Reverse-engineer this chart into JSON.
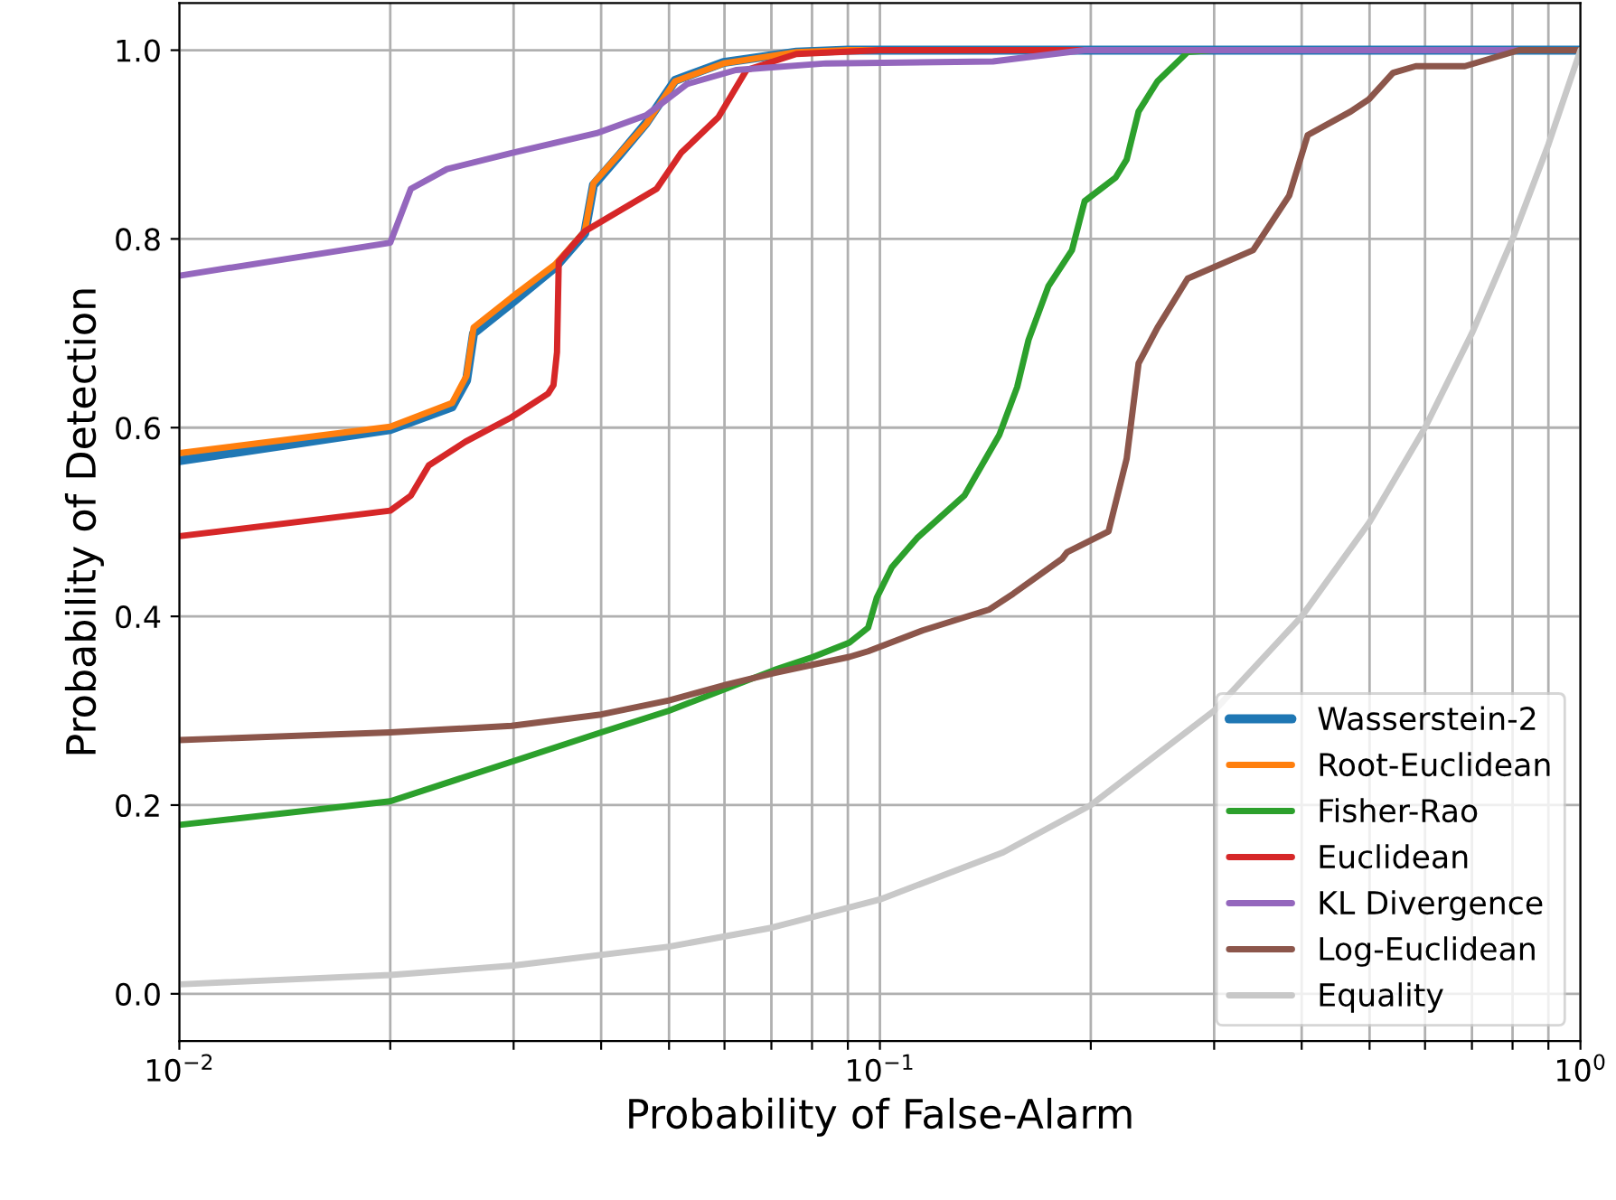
{
  "chart_data": {
    "type": "line",
    "xlabel": "Probability of False-Alarm",
    "ylabel": "Probability of Detection",
    "log": "x",
    "xlim": [
      0.01,
      1
    ],
    "ylim": [
      -0.05,
      1.05
    ],
    "xticks": [
      {
        "value": 0.01,
        "label": "10$^{−2}$"
      },
      {
        "value": 0.02,
        "label": null
      },
      {
        "value": 0.03,
        "label": null
      },
      {
        "value": 0.04,
        "label": null
      },
      {
        "value": 0.05,
        "label": null
      },
      {
        "value": 0.06,
        "label": null
      },
      {
        "value": 0.07,
        "label": null
      },
      {
        "value": 0.08,
        "label": null
      },
      {
        "value": 0.09,
        "label": null
      },
      {
        "value": 0.1,
        "label": "10$^{−1}$"
      },
      {
        "value": 0.2,
        "label": null
      },
      {
        "value": 0.3,
        "label": null
      },
      {
        "value": 0.4,
        "label": null
      },
      {
        "value": 0.5,
        "label": null
      },
      {
        "value": 0.6,
        "label": null
      },
      {
        "value": 0.7,
        "label": null
      },
      {
        "value": 0.8,
        "label": null
      },
      {
        "value": 0.9,
        "label": null
      },
      {
        "value": 1,
        "label": "10$^{0}$"
      }
    ],
    "yticks": [
      {
        "value": 0,
        "label": "0.0"
      },
      {
        "value": 0.2,
        "label": "0.2"
      },
      {
        "value": 0.4,
        "label": "0.4"
      },
      {
        "value": 0.6,
        "label": "0.6"
      },
      {
        "value": 0.8,
        "label": "0.8"
      },
      {
        "value": 1,
        "label": "1.0"
      }
    ],
    "grid": true,
    "legend": "bottom right",
    "marker": "none",
    "line_style": "solid",
    "series": [
      {
        "name": "Wasserstein-2",
        "color": "#1f77b4",
        "x": [
          0.01,
          0.02,
          0.0245,
          0.0257,
          0.0263,
          0.0298,
          0.0344,
          0.0379,
          0.039,
          0.0426,
          0.0464,
          0.051,
          0.0598,
          0.076,
          0.09,
          1
        ],
        "values": [
          0.565,
          0.598,
          0.622,
          0.65,
          0.7,
          0.732,
          0.77,
          0.806,
          0.857,
          0.89,
          0.923,
          0.968,
          0.987,
          0.998,
          1,
          1
        ]
      },
      {
        "name": "Root-Euclidean",
        "color": "#ff7f0e",
        "x": [
          0.01,
          0.02,
          0.0245,
          0.0257,
          0.0263,
          0.0298,
          0.0344,
          0.0379,
          0.039,
          0.0426,
          0.0464,
          0.051,
          0.0598,
          0.076,
          0.09,
          1
        ],
        "values": [
          0.573,
          0.601,
          0.626,
          0.655,
          0.706,
          0.738,
          0.773,
          0.808,
          0.859,
          0.891,
          0.922,
          0.967,
          0.986,
          0.998,
          1,
          1
        ]
      },
      {
        "name": "Fisher-Rao",
        "color": "#2ca02c",
        "x": [
          0.01,
          0.02,
          0.0298,
          0.04,
          0.05,
          0.0606,
          0.0706,
          0.0803,
          0.0904,
          0.0962,
          0.099,
          0.104,
          0.113,
          0.132,
          0.148,
          0.157,
          0.163,
          0.174,
          0.188,
          0.196,
          0.217,
          0.225,
          0.234,
          0.249,
          0.275,
          0.3,
          1
        ],
        "values": [
          0.179,
          0.204,
          0.246,
          0.277,
          0.3,
          0.324,
          0.343,
          0.357,
          0.372,
          0.388,
          0.42,
          0.452,
          0.483,
          0.528,
          0.592,
          0.643,
          0.693,
          0.75,
          0.788,
          0.84,
          0.865,
          0.884,
          0.935,
          0.967,
          0.998,
          1,
          1
        ]
      },
      {
        "name": "Euclidean",
        "color": "#d62728",
        "x": [
          0.01,
          0.02,
          0.0214,
          0.0227,
          0.0256,
          0.0298,
          0.0336,
          0.0342,
          0.0346,
          0.0347,
          0.0348,
          0.0379,
          0.048,
          0.052,
          0.0588,
          0.0645,
          0.076,
          0.1,
          1
        ],
        "values": [
          0.485,
          0.512,
          0.528,
          0.56,
          0.585,
          0.611,
          0.636,
          0.645,
          0.68,
          0.73,
          0.776,
          0.808,
          0.853,
          0.891,
          0.929,
          0.979,
          0.996,
          1,
          1
        ]
      },
      {
        "name": "KL Divergence",
        "color": "#9467bd",
        "x": [
          0.01,
          0.02,
          0.0214,
          0.0241,
          0.0298,
          0.0394,
          0.0464,
          0.053,
          0.0623,
          0.0838,
          0.145,
          0.196,
          1
        ],
        "values": [
          0.761,
          0.796,
          0.853,
          0.874,
          0.891,
          0.912,
          0.931,
          0.964,
          0.979,
          0.986,
          0.988,
          1,
          1
        ]
      },
      {
        "name": "Log-Euclidean",
        "color": "#8c564b",
        "x": [
          0.01,
          0.02,
          0.0298,
          0.04,
          0.05,
          0.0606,
          0.0706,
          0.0904,
          0.0962,
          0.115,
          0.143,
          0.155,
          0.182,
          0.185,
          0.212,
          0.225,
          0.234,
          0.249,
          0.275,
          0.341,
          0.384,
          0.408,
          0.47,
          0.499,
          0.54,
          0.582,
          0.684,
          0.817,
          1
        ],
        "values": [
          0.269,
          0.277,
          0.284,
          0.296,
          0.311,
          0.328,
          0.34,
          0.357,
          0.363,
          0.385,
          0.407,
          0.424,
          0.461,
          0.468,
          0.49,
          0.567,
          0.668,
          0.706,
          0.758,
          0.788,
          0.846,
          0.91,
          0.935,
          0.948,
          0.976,
          0.983,
          0.983,
          1,
          1
        ]
      },
      {
        "name": "Equality",
        "color": "#c8c8c8",
        "x": [
          0.01,
          0.02,
          0.03,
          0.05,
          0.07,
          0.1,
          0.15,
          0.2,
          0.3,
          0.4,
          0.5,
          0.6,
          0.7,
          0.8,
          0.9,
          1
        ],
        "values": [
          0.01,
          0.02,
          0.03,
          0.05,
          0.07,
          0.1,
          0.15,
          0.2,
          0.3,
          0.4,
          0.5,
          0.6,
          0.7,
          0.8,
          0.9,
          1
        ]
      }
    ]
  }
}
